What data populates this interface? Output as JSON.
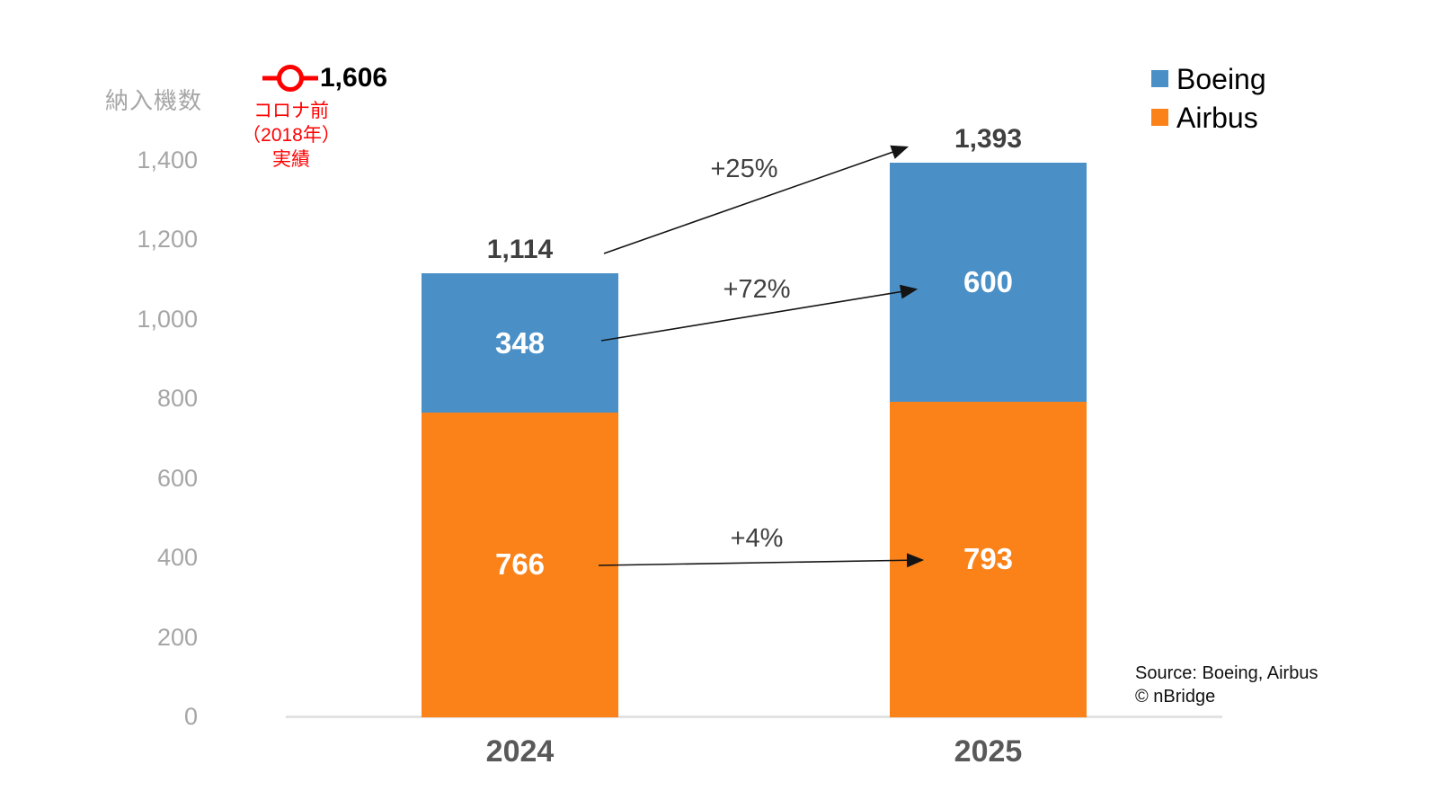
{
  "chart_data": {
    "type": "bar",
    "stacked": true,
    "title": "",
    "ylabel": "納入機数",
    "xlabel": "",
    "categories": [
      "2024",
      "2025"
    ],
    "series": [
      {
        "name": "Airbus",
        "color": "#fb8219",
        "values": [
          766,
          793
        ]
      },
      {
        "name": "Boeing",
        "color": "#4a90c7",
        "values": [
          348,
          600
        ]
      }
    ],
    "totals": [
      1114,
      1393
    ],
    "yticks": [
      0,
      200,
      400,
      600,
      800,
      1000,
      1200,
      1400
    ],
    "ylim": [
      0,
      1400
    ],
    "grid": false,
    "legend_position": "top-right",
    "legend": [
      {
        "label": "Boeing",
        "color": "#4a90c7"
      },
      {
        "label": "Airbus",
        "color": "#fb8219"
      }
    ],
    "reference": {
      "value": 1606,
      "caption_lines": [
        "コロナ前",
        "（2018年）",
        "実績"
      ],
      "color": "#ff0000"
    },
    "annotations": [
      {
        "label": "+25%",
        "target": "total"
      },
      {
        "label": "+72%",
        "target": "Boeing"
      },
      {
        "label": "+4%",
        "target": "Airbus"
      }
    ]
  },
  "source": {
    "line1": "Source: Boeing, Airbus",
    "line2": "© nBridge"
  }
}
